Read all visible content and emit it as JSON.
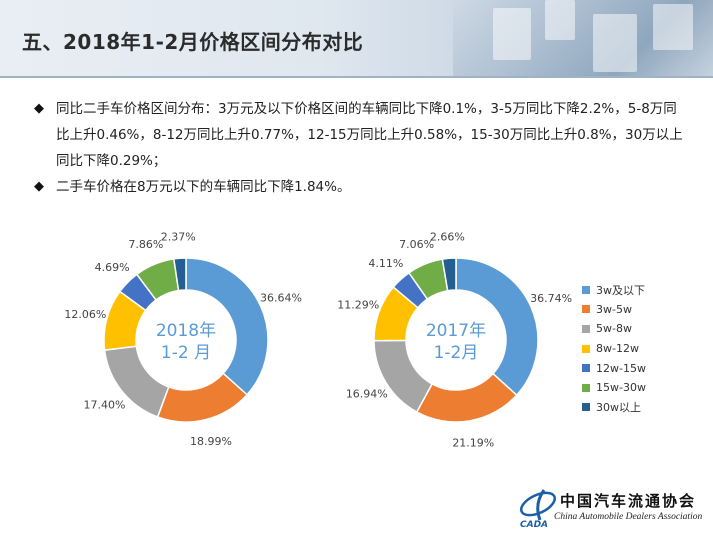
{
  "page": {
    "title": "五、2018年1-2月价格区间分布对比"
  },
  "bullets": [
    "同比二手车价格区间分布：3万元及以下价格区间的车辆同比下降0.1%，3-5万同比下降2.2%，5-8万同比上升0.46%，8-12万同比上升0.77%，12-15万同比上升0.58%，15-30万同比上升0.8%，30万以上同比下降0.29%；",
    "二手车价格在8万元以下的车辆同比下降1.84%。"
  ],
  "bullet_marker": "◆",
  "chart_data": [
    {
      "type": "pie",
      "donut": true,
      "title": "2018年1-2 月",
      "center_label_lines": [
        "2018年",
        "1-2 月"
      ],
      "categories": [
        "3w及以下",
        "3w-5w",
        "5w-8w",
        "8w-12w",
        "12w-15w",
        "15w-30w",
        "30w以上"
      ],
      "values": [
        36.64,
        18.99,
        17.4,
        12.06,
        4.69,
        7.86,
        2.37
      ],
      "labels": [
        "36.64%",
        "18.99%",
        "17.40%",
        "12.06%",
        "4.69%",
        "7.86%",
        "2.37%"
      ],
      "colors": [
        "#5b9bd5",
        "#ed7d31",
        "#a5a5a5",
        "#ffc000",
        "#4472c4",
        "#70ad47",
        "#255e91"
      ],
      "legend": "right"
    },
    {
      "type": "pie",
      "donut": true,
      "title": "2017年1-2月",
      "center_label_lines": [
        "2017年",
        "1-2月"
      ],
      "categories": [
        "3w及以下",
        "3w-5w",
        "5w-8w",
        "8w-12w",
        "12w-15w",
        "15w-30w",
        "30w以上"
      ],
      "values": [
        36.74,
        21.19,
        16.94,
        11.29,
        4.11,
        7.06,
        2.66
      ],
      "labels": [
        "36.74%",
        "21.19%",
        "16.94%",
        "11.29%",
        "4.11%",
        "7.06%",
        "2.66%"
      ],
      "colors": [
        "#5b9bd5",
        "#ed7d31",
        "#a5a5a5",
        "#ffc000",
        "#4472c4",
        "#70ad47",
        "#255e91"
      ],
      "legend": "right"
    }
  ],
  "legend": {
    "items": [
      "3w及以下",
      "3w-5w",
      "5w-8w",
      "8w-12w",
      "12w-15w",
      "15w-30w",
      "30w以上"
    ],
    "colors": [
      "#5b9bd5",
      "#ed7d31",
      "#a5a5a5",
      "#ffc000",
      "#4472c4",
      "#70ad47",
      "#255e91"
    ]
  },
  "logo": {
    "cn": "中国汽车流通协会",
    "en": "China Automobile Dealers Association",
    "abbr": "CADA"
  }
}
